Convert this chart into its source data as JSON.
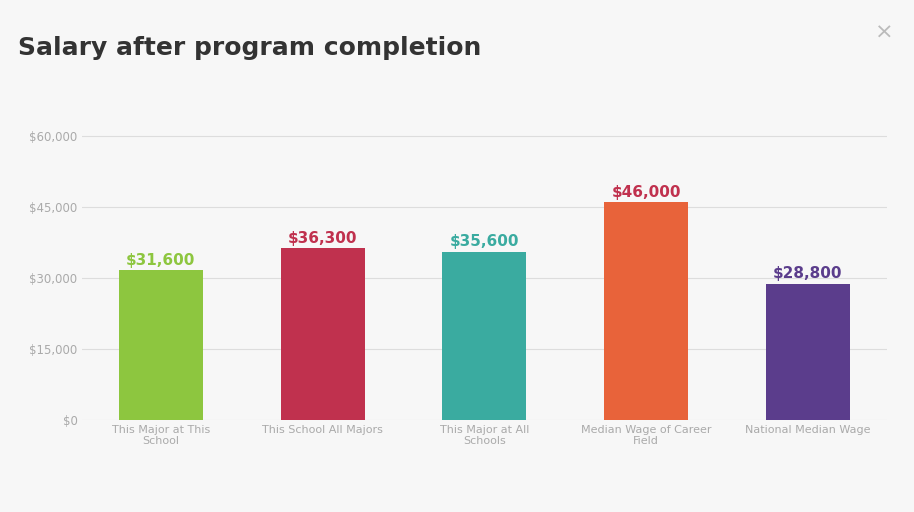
{
  "title": "Salary after program completion",
  "title_fontsize": 18,
  "title_fontweight": "bold",
  "title_color": "#333333",
  "background_color": "#f7f7f7",
  "plot_bg_color": "#f7f7f7",
  "categories": [
    "This Major at This\nSchool",
    "This School All Majors",
    "This Major at All\nSchools",
    "Median Wage of Career\nField",
    "National Median Wage"
  ],
  "values": [
    31600,
    36300,
    35600,
    46000,
    28800
  ],
  "bar_colors": [
    "#8dc63f",
    "#c0314e",
    "#3aaba0",
    "#e8633a",
    "#5b3d8c"
  ],
  "label_colors": [
    "#8dc63f",
    "#c0314e",
    "#3aaba0",
    "#c0314e",
    "#5b3d8c"
  ],
  "ylim": [
    0,
    65000
  ],
  "yticks": [
    0,
    15000,
    30000,
    45000,
    60000
  ],
  "ytick_labels": [
    "$0",
    "$15,000",
    "$30,000",
    "$45,000",
    "$60,000"
  ],
  "grid_color": "#dddddd",
  "tick_color": "#aaaaaa",
  "tick_fontsize": 8.5,
  "label_fontsize": 11,
  "xlabel_fontsize": 8,
  "bar_width": 0.52
}
